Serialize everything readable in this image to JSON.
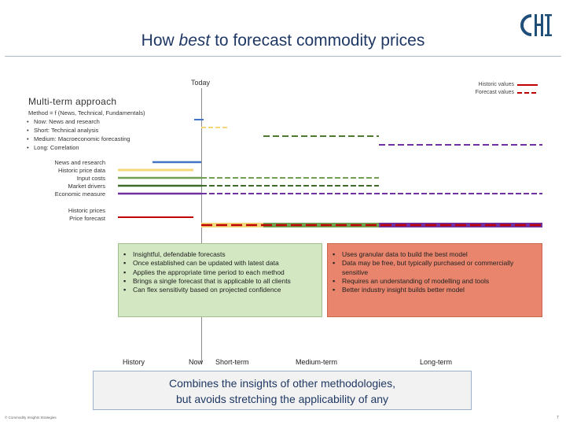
{
  "title": {
    "pre": "How ",
    "emph": "best",
    "post": " to forecast commodity prices"
  },
  "logo": {
    "icon": "company-logo-icon",
    "color": "#1f4e79"
  },
  "today_label": "Today",
  "legend": {
    "historic": "Historic values",
    "forecast": "Forecast values",
    "color": "#c00000"
  },
  "heading": "Multi-term approach",
  "method": {
    "formula": "Method = f (News, Technical, Fundamentals)",
    "items": [
      "Now: News and research",
      "Short: Technical analysis",
      "Medium: Macroeconomic forecasting",
      "Long: Correlation"
    ]
  },
  "inputs": {
    "labels": [
      "News and research",
      "Historic price data",
      "Input costs",
      "Market drivers",
      "Economic measure"
    ],
    "colors": [
      "#4472c4",
      "#f4d77a",
      "#70a050",
      "#3f6b2a",
      "#7030a0"
    ]
  },
  "prices": {
    "labels": [
      "Historic prices",
      "Price forecast"
    ],
    "color": "#c00000"
  },
  "method_colors": {
    "now": "#4472c4",
    "short": "#f4d77a",
    "medium": "#4d7a2e",
    "long": "#7030a0"
  },
  "pros": [
    "Insightful, defendable forecasts",
    "Once established can be updated with latest data",
    "Applies the appropriate time period to each method",
    "Brings a single forecast that is applicable to all clients",
    "Can flex sensitivity based on projected confidence"
  ],
  "cons": [
    "Uses granular data to build the best model",
    "Data may be free, but typically purchased or commercially sensitive",
    "Requires an understanding of modelling and tools",
    "Better industry insight builds better model"
  ],
  "axis": {
    "history": "History",
    "now": "Now",
    "short": "Short-term",
    "medium": "Medium-term",
    "long": "Long-term"
  },
  "summary": {
    "line1": "Combines the insights of other methodologies,",
    "line2": "but avoids stretching the applicability of any"
  },
  "footer": {
    "copyright": "© Commodity Insights Strategies",
    "page": "7"
  }
}
